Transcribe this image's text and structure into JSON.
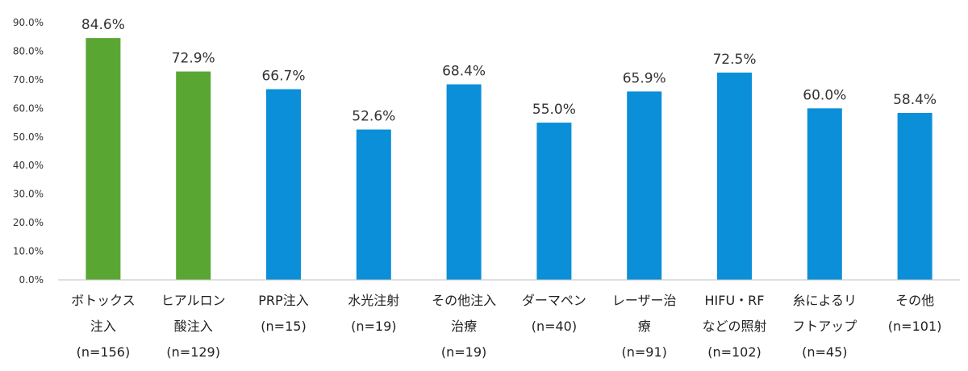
{
  "chart_data": {
    "type": "bar",
    "title": "",
    "xlabel": "",
    "ylabel": "",
    "ylim": [
      0,
      90
    ],
    "y_ticks": [
      "0.0%",
      "10.0%",
      "20.0%",
      "30.0%",
      "40.0%",
      "50.0%",
      "60.0%",
      "70.0%",
      "80.0%",
      "90.0%"
    ],
    "grid": false,
    "legend": "none",
    "colors": {
      "green": "#5aa632",
      "blue": "#0a8fd8",
      "axis": "#bfbfbf"
    },
    "categories": [
      [
        "ボトックス",
        "注入",
        "(n=156)"
      ],
      [
        "ヒアルロン",
        "酸注入",
        "(n=129)"
      ],
      [
        "PRP注入",
        "(n=15)"
      ],
      [
        "水光注射",
        "(n=19)"
      ],
      [
        "その他注入",
        "治療",
        "(n=19)"
      ],
      [
        "ダーマペン",
        "(n=40)"
      ],
      [
        "レーザー治",
        "療",
        "(n=91)"
      ],
      [
        "HIFU・RF",
        "などの照射",
        "(n=102)"
      ],
      [
        "糸によるリ",
        "フトアップ",
        "(n=45)"
      ],
      [
        "その他",
        "(n=101)"
      ]
    ],
    "values": [
      84.6,
      72.9,
      66.7,
      52.6,
      68.4,
      55.0,
      65.9,
      72.5,
      60.0,
      58.4
    ],
    "value_labels": [
      "84.6%",
      "72.9%",
      "66.7%",
      "52.6%",
      "68.4%",
      "55.0%",
      "65.9%",
      "72.5%",
      "60.0%",
      "58.4%"
    ],
    "bar_colors": [
      "green",
      "green",
      "blue",
      "blue",
      "blue",
      "blue",
      "blue",
      "blue",
      "blue",
      "blue"
    ]
  }
}
